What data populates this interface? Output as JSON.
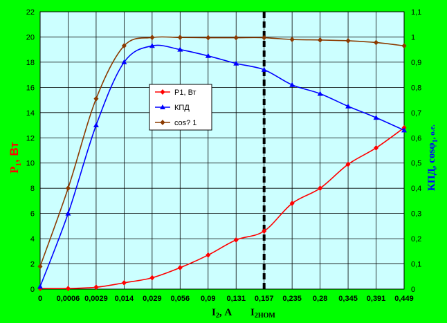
{
  "chart_data": {
    "type": "line",
    "categories": [
      "0",
      "0,0006",
      "0,0029",
      "0,014",
      "0,029",
      "0,056",
      "0,09",
      "0,131",
      "0,157",
      "0,235",
      "0,28",
      "0,345",
      "0,391",
      "0,449"
    ],
    "series": [
      {
        "name": "P1, Вт",
        "axis": "left",
        "color": "#ff0000",
        "marker": "diamond",
        "values": [
          0.05,
          0.05,
          0.15,
          0.5,
          0.9,
          1.7,
          2.7,
          3.9,
          4.6,
          6.8,
          8.0,
          9.9,
          11.2,
          12.8
        ]
      },
      {
        "name": "КПД",
        "axis": "right",
        "color": "#0000ff",
        "marker": "triangle",
        "values": [
          0.01,
          0.3,
          0.65,
          0.9,
          0.965,
          0.95,
          0.925,
          0.895,
          0.87,
          0.81,
          0.775,
          0.725,
          0.68,
          0.63
        ]
      },
      {
        "name": "cos? 1",
        "axis": "right",
        "color": "#8b3a00",
        "marker": "diamond",
        "values": [
          0.09,
          0.4,
          0.755,
          0.965,
          0.998,
          0.998,
          0.997,
          0.997,
          0.997,
          0.99,
          0.988,
          0.985,
          0.978,
          0.965
        ]
      }
    ],
    "y_left": {
      "label_main": "P",
      "label_sub": "1",
      "label_rest": ", Вт",
      "min": 0,
      "max": 22,
      "step": 2,
      "ticks": [
        "0",
        "2",
        "4",
        "6",
        "8",
        "10",
        "12",
        "14",
        "16",
        "18",
        "20",
        "22"
      ]
    },
    "y_right": {
      "label_main": "КПД, cos",
      "label_phi": "φ",
      "label_sub": "1",
      "label_rest": ", о.е.",
      "min": 0,
      "max": 1.1,
      "step": 0.1,
      "ticks": [
        "0",
        "0,1",
        "0,2",
        "0,3",
        "0,4",
        "0,5",
        "0,6",
        "0,7",
        "0,8",
        "0,9",
        "1",
        "1,1"
      ]
    },
    "x_axis": {
      "label_main": "I",
      "label_sub": "2",
      "label_rest": ", А"
    },
    "nominal_line": {
      "category_index": 8,
      "label_main": "I",
      "label_sub": "2НОМ"
    },
    "legend": {
      "position": "center-left"
    },
    "grid": true,
    "colors": {
      "frame": "#00ff00",
      "plot_bg": "#ccffff",
      "grid": "#000000",
      "left_label": "#ff0000",
      "right_label": "#0000ff",
      "cos_label": "#8b3a00"
    }
  }
}
